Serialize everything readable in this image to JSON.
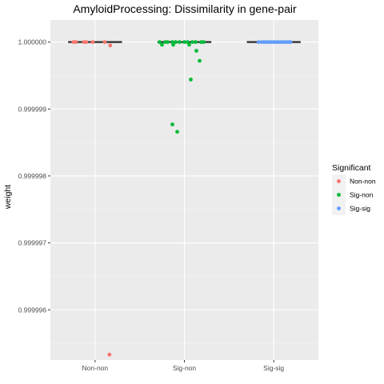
{
  "chart_data": {
    "type": "scatter",
    "subtype": "boxplot-with-jitter",
    "title": "AmyloidProcessing: Dissimilarity in gene-pair",
    "xlabel": "",
    "ylabel": "weight",
    "categories": [
      "Non-non",
      "Sig-non",
      "Sig-sig"
    ],
    "ylim": [
      0.99999525,
      1.00000033
    ],
    "yticks": [
      "0.999996",
      "0.999997",
      "0.999998",
      "0.999999",
      "1.000000"
    ],
    "ytick_values": [
      0.999996,
      0.999997,
      0.999998,
      0.999999,
      1.0
    ],
    "grid": true,
    "legend": {
      "title": "Significant",
      "position": "right",
      "entries": [
        {
          "label": "Non-non",
          "color": "#F8766D"
        },
        {
          "label": "Sig-non",
          "color": "#00BA38"
        },
        {
          "label": "Sig-sig",
          "color": "#619CFF"
        }
      ]
    },
    "boxes": [
      {
        "category": "Non-non",
        "median": 1.0,
        "q1": 1.0,
        "q3": 1.0
      },
      {
        "category": "Sig-non",
        "median": 1.0,
        "q1": 1.0,
        "q3": 1.0
      },
      {
        "category": "Sig-sig",
        "median": 1.0,
        "q1": 1.0,
        "q3": 1.0
      }
    ],
    "series": [
      {
        "category": "Non-non",
        "color": "#F8766D",
        "points": [
          {
            "x": "Non-non",
            "y": 1.0
          },
          {
            "x": "Non-non",
            "y": 1.0
          },
          {
            "x": "Non-non",
            "y": 1.0
          },
          {
            "x": "Non-non",
            "y": 1.0
          },
          {
            "x": "Non-non",
            "y": 1.0
          },
          {
            "x": "Non-non",
            "y": 1.0
          },
          {
            "x": "Non-non",
            "y": 0.99999995
          },
          {
            "x": "Non-non",
            "y": 0.99999533
          }
        ]
      },
      {
        "category": "Sig-non",
        "color": "#00BA38",
        "points": [
          {
            "x": "Sig-non",
            "y": 1.0
          },
          {
            "x": "Sig-non",
            "y": 1.0
          },
          {
            "x": "Sig-non",
            "y": 1.0
          },
          {
            "x": "Sig-non",
            "y": 1.0
          },
          {
            "x": "Sig-non",
            "y": 1.0
          },
          {
            "x": "Sig-non",
            "y": 1.0
          },
          {
            "x": "Sig-non",
            "y": 1.0
          },
          {
            "x": "Sig-non",
            "y": 1.0
          },
          {
            "x": "Sig-non",
            "y": 1.0
          },
          {
            "x": "Sig-non",
            "y": 1.0
          },
          {
            "x": "Sig-non",
            "y": 1.0
          },
          {
            "x": "Sig-non",
            "y": 1.0
          },
          {
            "x": "Sig-non",
            "y": 0.99999996
          },
          {
            "x": "Sig-non",
            "y": 0.99999996
          },
          {
            "x": "Sig-non",
            "y": 0.99999996
          },
          {
            "x": "Sig-non",
            "y": 0.99999987
          },
          {
            "x": "Sig-non",
            "y": 0.99999972
          },
          {
            "x": "Sig-non",
            "y": 0.99999944
          },
          {
            "x": "Sig-non",
            "y": 0.99999877
          },
          {
            "x": "Sig-non",
            "y": 0.99999866
          }
        ]
      },
      {
        "category": "Sig-sig",
        "color": "#619CFF",
        "points": [
          {
            "x": "Sig-sig",
            "y": 1.0
          },
          {
            "x": "Sig-sig",
            "y": 1.0
          },
          {
            "x": "Sig-sig",
            "y": 1.0
          },
          {
            "x": "Sig-sig",
            "y": 1.0
          },
          {
            "x": "Sig-sig",
            "y": 1.0
          },
          {
            "x": "Sig-sig",
            "y": 1.0
          },
          {
            "x": "Sig-sig",
            "y": 1.0
          },
          {
            "x": "Sig-sig",
            "y": 1.0
          },
          {
            "x": "Sig-sig",
            "y": 1.0
          },
          {
            "x": "Sig-sig",
            "y": 1.0
          },
          {
            "x": "Sig-sig",
            "y": 1.0
          },
          {
            "x": "Sig-sig",
            "y": 1.0
          },
          {
            "x": "Sig-sig",
            "y": 1.0
          },
          {
            "x": "Sig-sig",
            "y": 1.0
          }
        ]
      }
    ]
  }
}
